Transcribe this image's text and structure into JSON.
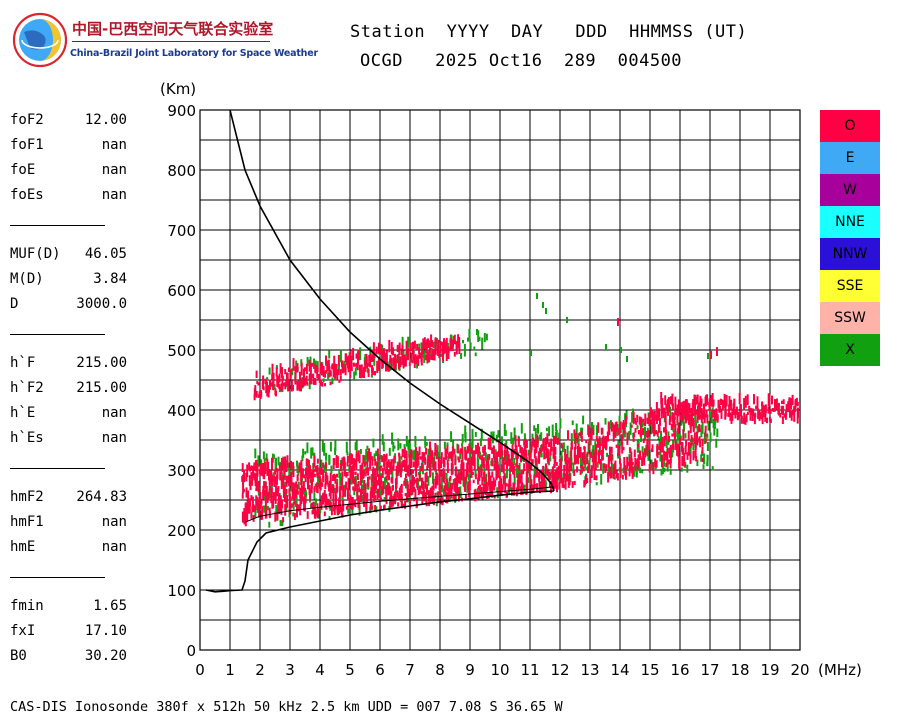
{
  "logo": {
    "title_cn": "中国-巴西空间天气联合实验室",
    "title_en": "China-Brazil Joint Laboratory for Space Weather"
  },
  "header": {
    "labels_line": "Station  YYYY  DAY   DDD  HHMMSS (UT)",
    "values_line": "OCGD   2025 Oct16  289  004500"
  },
  "parameters": {
    "group1": [
      {
        "name": "foF2",
        "value": "12.00"
      },
      {
        "name": "foF1",
        "value": "nan"
      },
      {
        "name": "foE",
        "value": "nan"
      },
      {
        "name": "foEs",
        "value": "nan"
      }
    ],
    "group2": [
      {
        "name": "MUF(D)",
        "value": "46.05"
      },
      {
        "name": "M(D)",
        "value": "3.84"
      },
      {
        "name": "D",
        "value": "3000.0"
      }
    ],
    "group3": [
      {
        "name": "h`F",
        "value": "215.00"
      },
      {
        "name": "h`F2",
        "value": "215.00"
      },
      {
        "name": "h`E",
        "value": "nan"
      },
      {
        "name": "h`Es",
        "value": "nan"
      }
    ],
    "group4": [
      {
        "name": "hmF2",
        "value": "264.83"
      },
      {
        "name": "hmF1",
        "value": "nan"
      },
      {
        "name": "hmE",
        "value": "nan"
      }
    ],
    "group5": [
      {
        "name": "fmin",
        "value": "1.65"
      },
      {
        "name": "fxI",
        "value": "17.10"
      },
      {
        "name": "B0",
        "value": "30.20"
      }
    ]
  },
  "legend": [
    {
      "label": "O",
      "color": "#ff0044"
    },
    {
      "label": "E",
      "color": "#3fa9f5"
    },
    {
      "label": "W",
      "color": "#a8009a"
    },
    {
      "label": "NNE",
      "color": "#1affff"
    },
    {
      "label": "NNW",
      "color": "#2a10d8"
    },
    {
      "label": "SSE",
      "color": "#ffff33"
    },
    {
      "label": "SSW",
      "color": "#ffb3a8"
    },
    {
      "label": "X",
      "color": "#10a010"
    }
  ],
  "footer": "CAS-DIS Ionosonde 380f x 512h 50 kHz 2.5 km UDD = 007 7.08 S 36.65 W",
  "chart_data": {
    "type": "scatter",
    "xlabel": "(MHz)",
    "ylabel": "(Km)",
    "xlim": [
      0,
      20
    ],
    "ylim": [
      0,
      900
    ],
    "xticks": [
      "0",
      "1",
      "2",
      "3",
      "4",
      "5",
      "6",
      "7",
      "8",
      "9",
      "10",
      "11",
      "12",
      "13",
      "14",
      "15",
      "16",
      "17",
      "18",
      "19",
      "20"
    ],
    "yticks": [
      "0",
      "100",
      "200",
      "300",
      "400",
      "500",
      "600",
      "700",
      "800",
      "900"
    ],
    "grid": true,
    "colors": {
      "O": "#ff0044",
      "X": "#10a010",
      "profile": "#000000"
    },
    "series": [
      {
        "name": "O",
        "bands": [
          {
            "x": [
              1.4,
              11.8
            ],
            "h_bottom": [
              205,
              262
            ],
            "h_top": [
              300,
              345
            ]
          },
          {
            "x": [
              11.8,
              16.8
            ],
            "h_bottom": [
              262,
              305
            ],
            "h_top": [
              345,
              415
            ]
          },
          {
            "x": [
              1.8,
              8.6
            ],
            "h_bottom": [
              415,
              485
            ],
            "h_top": [
              455,
              520
            ]
          },
          {
            "x": [
              15.2,
              19.9
            ],
            "h_bottom": [
              375,
              375
            ],
            "h_top": [
              410,
              410
            ]
          }
        ]
      },
      {
        "name": "X",
        "bands": [
          {
            "x": [
              1.8,
              17.2
            ],
            "h_bottom": [
              200,
              300
            ],
            "h_top": [
              320,
              400
            ]
          },
          {
            "x": [
              2.2,
              9.5
            ],
            "h_bottom": [
              420,
              490
            ],
            "h_top": [
              470,
              525
            ]
          },
          {
            "x": [
              11.0,
              14.3
            ],
            "h_bottom": [
              470,
              470
            ],
            "h_top": [
              590,
              590
            ]
          }
        ]
      }
    ],
    "profile_upper": [
      [
        1.0,
        900
      ],
      [
        1.2,
        860
      ],
      [
        1.5,
        800
      ],
      [
        2.0,
        740
      ],
      [
        3.0,
        650
      ],
      [
        4.0,
        585
      ],
      [
        5.0,
        530
      ],
      [
        6.0,
        485
      ],
      [
        7.0,
        445
      ],
      [
        8.0,
        410
      ],
      [
        9.0,
        378
      ],
      [
        10.0,
        346
      ],
      [
        11.0,
        312
      ],
      [
        11.4,
        295
      ],
      [
        11.7,
        278
      ],
      [
        11.8,
        265
      ]
    ],
    "profile_lower": [
      [
        0.2,
        100
      ],
      [
        0.5,
        97
      ],
      [
        0.8,
        98
      ],
      [
        1.0,
        99
      ],
      [
        1.4,
        100
      ],
      [
        1.5,
        115
      ],
      [
        1.6,
        150
      ],
      [
        1.9,
        180
      ],
      [
        2.2,
        195
      ],
      [
        3.0,
        205
      ],
      [
        4.0,
        215
      ],
      [
        5.0,
        225
      ],
      [
        6.0,
        233
      ],
      [
        7.0,
        240
      ],
      [
        8.0,
        247
      ],
      [
        9.0,
        252
      ],
      [
        10.0,
        258
      ],
      [
        11.0,
        263
      ],
      [
        11.8,
        265
      ]
    ],
    "profile_trace": [
      [
        1.5,
        213
      ],
      [
        2.0,
        223
      ],
      [
        3.0,
        232
      ],
      [
        4.0,
        238
      ],
      [
        5.0,
        243
      ],
      [
        6.0,
        248
      ],
      [
        7.0,
        252
      ],
      [
        8.0,
        256
      ],
      [
        9.0,
        260
      ],
      [
        10.0,
        264
      ],
      [
        11.0,
        268
      ],
      [
        11.8,
        272
      ]
    ]
  }
}
